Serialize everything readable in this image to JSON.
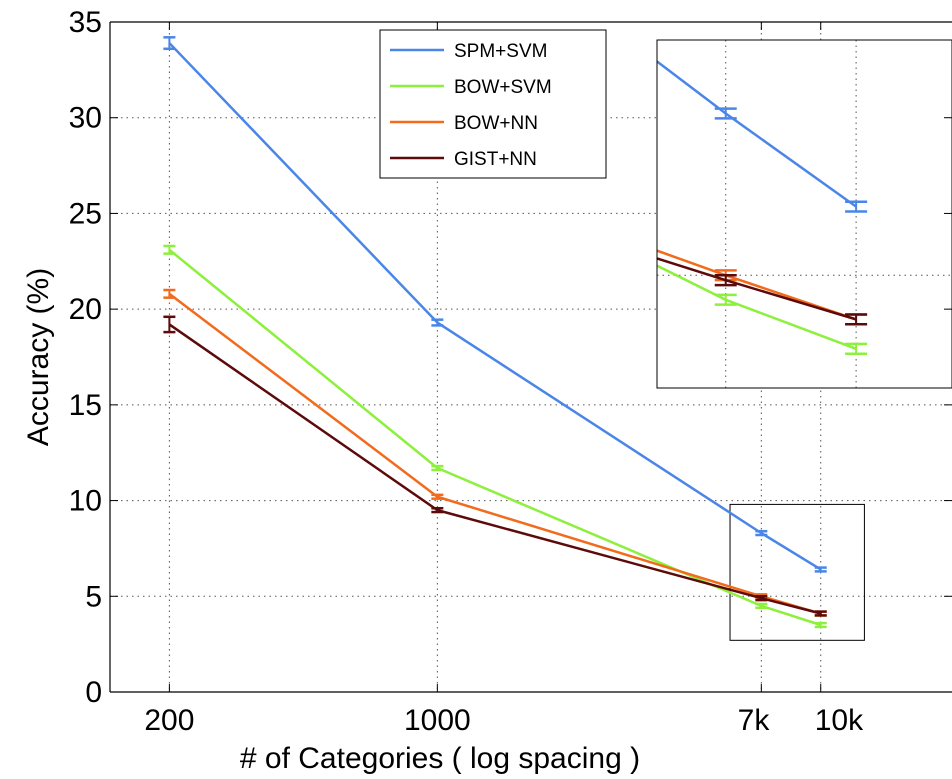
{
  "chart_data": {
    "type": "line",
    "title": "",
    "xlabel": "# of Categories ( log spacing )",
    "ylabel": "Accuracy (%)",
    "x_scale": "log",
    "x": [
      200,
      1000,
      7000,
      10000
    ],
    "x_tick_labels": [
      "200",
      "1000",
      "7k",
      "10k"
    ],
    "y_ticks": [
      0,
      5,
      10,
      15,
      20,
      25,
      30,
      35
    ],
    "y_tick_labels": [
      "0",
      "5",
      "10",
      "15",
      "20",
      "25",
      "30",
      "35"
    ],
    "ylim": [
      0,
      35
    ],
    "grid": true,
    "legend_position": "top-center",
    "series": [
      {
        "name": "SPM+SVM",
        "color": "#4a86e8",
        "values": [
          33.9,
          19.3,
          8.3,
          6.4
        ],
        "errors": [
          0.3,
          0.15,
          0.1,
          0.1
        ]
      },
      {
        "name": "BOW+SVM",
        "color": "#8cf03c",
        "values": [
          23.1,
          11.7,
          4.5,
          3.5
        ],
        "errors": [
          0.2,
          0.1,
          0.1,
          0.1
        ]
      },
      {
        "name": "BOW+NN",
        "color": "#f26b1d",
        "values": [
          20.8,
          10.2,
          5.0,
          4.1
        ],
        "errors": [
          0.2,
          0.1,
          0.1,
          0.1
        ]
      },
      {
        "name": "GIST+NN",
        "color": "#5c0a0a",
        "values": [
          19.2,
          9.5,
          4.9,
          4.1
        ],
        "errors": [
          0.4,
          0.1,
          0.1,
          0.1
        ]
      }
    ],
    "inset": {
      "shows": "zoom of 7k–10k region",
      "xlim": [
        5800,
        13000
      ],
      "ylim": [
        2.7,
        9.8
      ]
    }
  }
}
